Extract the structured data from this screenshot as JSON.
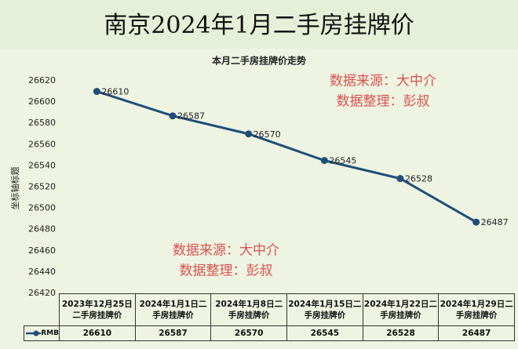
{
  "chart_data": {
    "type": "line",
    "banner_title": "南京2024年1月二手房挂牌价",
    "title": "本月二手房挂牌价走势",
    "y_label": "坐标轴标题",
    "categories": [
      "2023年12月25日二手房挂牌价",
      "2024年1月1日二手房挂牌价",
      "2024年1月8日二手房挂牌价",
      "2024年1月15日二手房挂牌价",
      "2024年1月22日二手房挂牌价",
      "2024年1月29日二手房挂牌价"
    ],
    "series": [
      {
        "name": "RMB",
        "color": "#1f4e79",
        "values": [
          26610,
          26587,
          26570,
          26545,
          26528,
          26487
        ]
      }
    ],
    "ylim": [
      26420,
      26620
    ],
    "yticks": [
      26420,
      26440,
      26460,
      26480,
      26500,
      26520,
      26540,
      26560,
      26580,
      26600,
      26620
    ],
    "annotations": [
      "数据来源：大中介",
      "数据整理：彭叔",
      "数据来源：大中介",
      "数据整理：彭叔"
    ]
  }
}
